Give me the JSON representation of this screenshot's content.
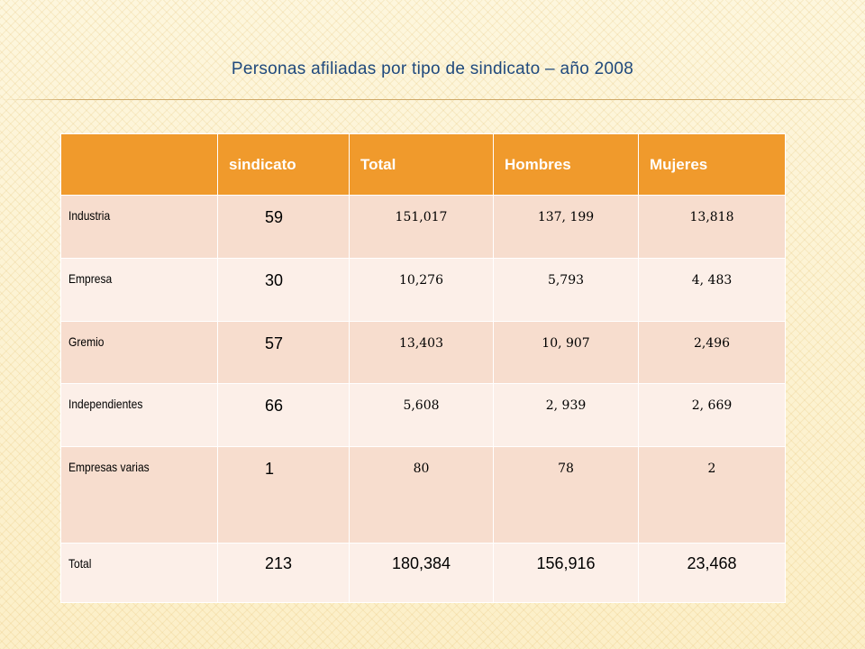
{
  "slide": {
    "title": "Personas afiliadas por tipo de sindicato – año 2008"
  },
  "table": {
    "headers": [
      "",
      "sindicato",
      "Total",
      "Hombres",
      "Mujeres"
    ],
    "rows": [
      {
        "name": "Industria",
        "sindicato": "59",
        "total": "151,017",
        "hombres": "137, 199",
        "mujeres": "13,818"
      },
      {
        "name": "Empresa",
        "sindicato": "30",
        "total": "10,276",
        "hombres": "5,793",
        "mujeres": "4, 483"
      },
      {
        "name": "Gremio",
        "sindicato": "57",
        "total": "13,403",
        "hombres": "10, 907",
        "mujeres": "2,496"
      },
      {
        "name": "Independientes",
        "sindicato": "66",
        "total": "5,608",
        "hombres": "2, 939",
        "mujeres": "2, 669"
      },
      {
        "name": "Empresas varias",
        "sindicato": "1",
        "total": "80",
        "hombres": "78",
        "mujeres": "2"
      },
      {
        "name": "Total",
        "sindicato": "213",
        "total": "180,384",
        "hombres": "156,916",
        "mujeres": "23,468"
      }
    ]
  },
  "colors": {
    "title_text": "#1f497d",
    "header_bg": "#f09a2c",
    "row_odd_bg": "#f7ddce",
    "row_even_bg": "#fcefe8",
    "background": "#fdf4d6"
  }
}
